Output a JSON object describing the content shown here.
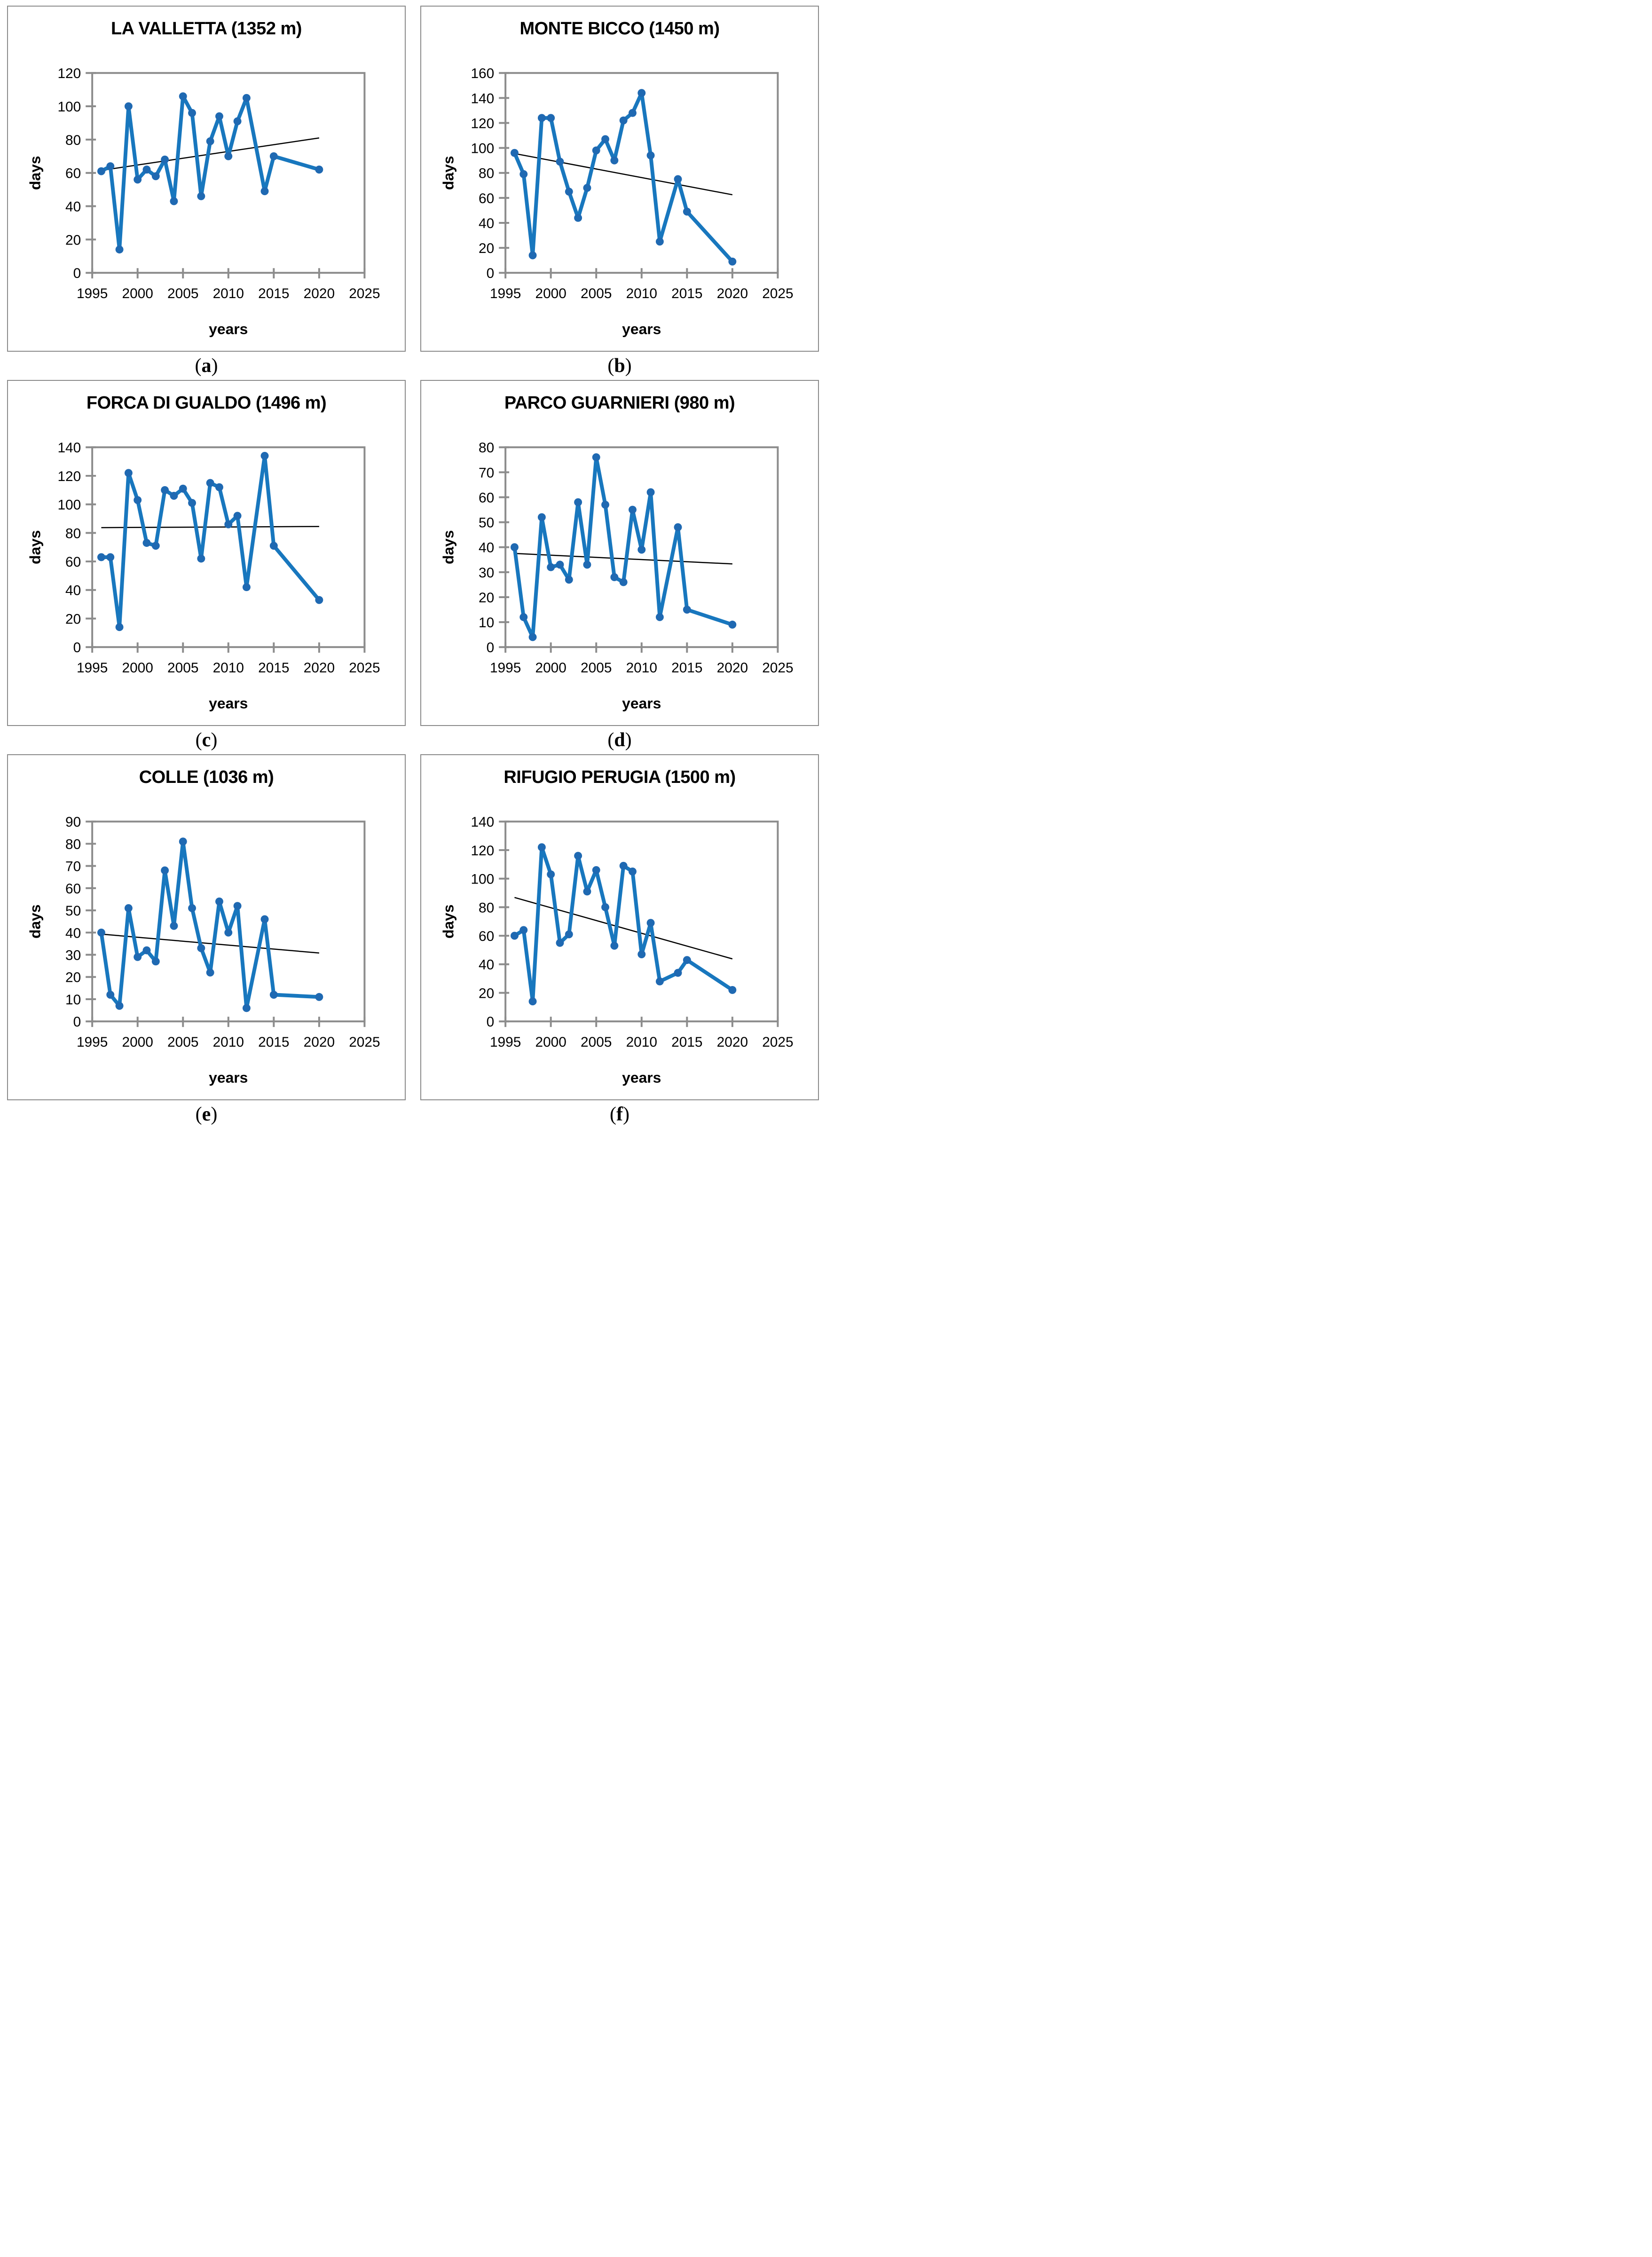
{
  "style": {
    "series_line_color": "#1877BE",
    "marker_color": "#1F69B2",
    "trend_line_color": "#000000",
    "axis_color": "#8C8C8C",
    "text_color": "#000000"
  },
  "panels": [
    {
      "prefix": "(",
      "letter": "a",
      "suffix": ")"
    },
    {
      "prefix": "(",
      "letter": "b",
      "suffix": ")"
    },
    {
      "prefix": "(",
      "letter": "c",
      "suffix": ")"
    },
    {
      "prefix": "(",
      "letter": "d",
      "suffix": ")"
    },
    {
      "prefix": "(",
      "letter": "e",
      "suffix": ")"
    },
    {
      "prefix": "(",
      "letter": "f",
      "suffix": ")"
    }
  ],
  "chart_data": [
    {
      "type": "line",
      "title": "LA VALLETTA (1352 m)",
      "xlabel": "years",
      "ylabel": "days",
      "xlim": [
        1995,
        2025
      ],
      "ylim": [
        0,
        120
      ],
      "xticks": [
        1995,
        2000,
        2005,
        2010,
        2015,
        2020,
        2025
      ],
      "yticks": [
        0,
        20,
        40,
        60,
        80,
        100,
        120
      ],
      "grid": false,
      "legend": false,
      "x": [
        1996,
        1997,
        1998,
        1999,
        2000,
        2001,
        2002,
        2003,
        2004,
        2005,
        2006,
        2007,
        2008,
        2009,
        2010,
        2011,
        2012,
        2014,
        2015,
        2020
      ],
      "y": [
        61,
        64,
        14,
        100,
        56,
        62,
        58,
        68,
        43,
        106,
        96,
        46,
        79,
        94,
        70,
        91,
        105,
        49,
        70,
        62
      ],
      "trendline": {
        "x": [
          1996,
          2020
        ],
        "y": [
          61.5,
          81
        ]
      }
    },
    {
      "type": "line",
      "title": "MONTE BICCO (1450 m)",
      "xlabel": "years",
      "ylabel": "days",
      "xlim": [
        1995,
        2025
      ],
      "ylim": [
        0,
        160
      ],
      "xticks": [
        1995,
        2000,
        2005,
        2010,
        2015,
        2020,
        2025
      ],
      "yticks": [
        0,
        20,
        40,
        60,
        80,
        100,
        120,
        140,
        160
      ],
      "grid": false,
      "legend": false,
      "x": [
        1996,
        1997,
        1998,
        1999,
        2000,
        2001,
        2002,
        2003,
        2004,
        2005,
        2006,
        2007,
        2008,
        2009,
        2010,
        2011,
        2012,
        2014,
        2015,
        2020
      ],
      "y": [
        96,
        79,
        14,
        124,
        124,
        89,
        65,
        44,
        68,
        98,
        107,
        90,
        122,
        128,
        144,
        94,
        25,
        75,
        49,
        9
      ],
      "trendline": {
        "x": [
          1996,
          2020
        ],
        "y": [
          95.5,
          62.5
        ]
      }
    },
    {
      "type": "line",
      "title": "FORCA DI GUALDO (1496 m)",
      "xlabel": "years",
      "ylabel": "days",
      "xlim": [
        1995,
        2025
      ],
      "ylim": [
        0,
        140
      ],
      "xticks": [
        1995,
        2000,
        2005,
        2010,
        2015,
        2020,
        2025
      ],
      "yticks": [
        0,
        20,
        40,
        60,
        80,
        100,
        120,
        140
      ],
      "grid": false,
      "legend": false,
      "x": [
        1996,
        1997,
        1998,
        1999,
        2000,
        2001,
        2002,
        2003,
        2004,
        2005,
        2006,
        2007,
        2008,
        2009,
        2010,
        2011,
        2012,
        2014,
        2015,
        2020
      ],
      "y": [
        63,
        63,
        14,
        122,
        103,
        73,
        71,
        110,
        106,
        111,
        101,
        62,
        115,
        112,
        86,
        92,
        42,
        134,
        71,
        33
      ],
      "trendline": {
        "x": [
          1996,
          2020
        ],
        "y": [
          83.7,
          84.5
        ]
      }
    },
    {
      "type": "line",
      "title": "PARCO GUARNIERI (980 m)",
      "xlabel": "years",
      "ylabel": "days",
      "xlim": [
        1995,
        2025
      ],
      "ylim": [
        0,
        80
      ],
      "xticks": [
        1995,
        2000,
        2005,
        2010,
        2015,
        2020,
        2025
      ],
      "yticks": [
        0,
        10,
        20,
        30,
        40,
        50,
        60,
        70,
        80
      ],
      "grid": false,
      "legend": false,
      "x": [
        1996,
        1997,
        1998,
        1999,
        2000,
        2001,
        2002,
        2003,
        2004,
        2005,
        2006,
        2007,
        2008,
        2009,
        2010,
        2011,
        2012,
        2014,
        2015,
        2020
      ],
      "y": [
        40,
        12,
        4,
        52,
        32,
        33,
        27,
        58,
        33,
        76,
        57,
        28,
        26,
        55,
        39,
        62,
        12,
        48,
        15,
        9
      ],
      "trendline": {
        "x": [
          1996,
          2020
        ],
        "y": [
          37.5,
          33.3
        ]
      }
    },
    {
      "type": "line",
      "title": "COLLE (1036 m)",
      "xlabel": "years",
      "ylabel": "days",
      "xlim": [
        1995,
        2025
      ],
      "ylim": [
        0,
        90
      ],
      "xticks": [
        1995,
        2000,
        2005,
        2010,
        2015,
        2020,
        2025
      ],
      "yticks": [
        0,
        10,
        20,
        30,
        40,
        50,
        60,
        70,
        80,
        90
      ],
      "grid": false,
      "legend": false,
      "x": [
        1996,
        1997,
        1998,
        1999,
        2000,
        2001,
        2002,
        2003,
        2004,
        2005,
        2006,
        2007,
        2008,
        2009,
        2010,
        2011,
        2012,
        2014,
        2015,
        2020
      ],
      "y": [
        40,
        12,
        7,
        51,
        29,
        32,
        27,
        68,
        43,
        81,
        51,
        33,
        22,
        54,
        40,
        52,
        6,
        46,
        12,
        11
      ],
      "trendline": {
        "x": [
          1996,
          2020
        ],
        "y": [
          39.3,
          30.8
        ]
      }
    },
    {
      "type": "line",
      "title": "RIFUGIO PERUGIA (1500 m)",
      "xlabel": "years",
      "ylabel": "days",
      "xlim": [
        1995,
        2025
      ],
      "ylim": [
        0,
        140
      ],
      "xticks": [
        1995,
        2000,
        2005,
        2010,
        2015,
        2020,
        2025
      ],
      "yticks": [
        0,
        20,
        40,
        60,
        80,
        100,
        120,
        140
      ],
      "grid": false,
      "legend": false,
      "x": [
        1996,
        1997,
        1998,
        1999,
        2000,
        2001,
        2002,
        2003,
        2004,
        2005,
        2006,
        2007,
        2008,
        2009,
        2010,
        2011,
        2012,
        2014,
        2015,
        2020
      ],
      "y": [
        60,
        64,
        14,
        122,
        103,
        55,
        61,
        116,
        91,
        106,
        80,
        53,
        109,
        105,
        47,
        69,
        28,
        34,
        43,
        22
      ],
      "trendline": {
        "x": [
          1996,
          2020
        ],
        "y": [
          86.8,
          43.8
        ]
      }
    }
  ]
}
